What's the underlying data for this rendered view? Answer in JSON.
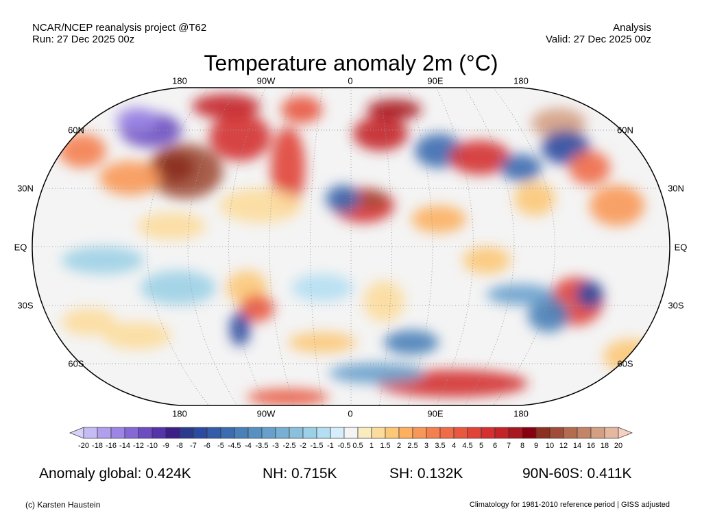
{
  "header": {
    "left_line1": "NCAR/NCEP reanalysis project @T62",
    "left_line2": "Run: 27 Dec 2025 00z",
    "right_line1": "Analysis",
    "right_line2": "Valid: 27 Dec 2025 00z",
    "title": "Temperature anomaly 2m (°C)"
  },
  "map": {
    "projection": "Robinson",
    "lon_labels": [
      "180",
      "90W",
      "0",
      "90E",
      "180"
    ],
    "lat_labels_left": [
      "60N",
      "30N",
      "EQ",
      "30S",
      "60S"
    ],
    "lat_labels_right": [
      "60N",
      "30N",
      "EQ",
      "30S",
      "60S"
    ]
  },
  "colorbar": {
    "labels": [
      "-20",
      "-18",
      "-16",
      "-14",
      "-12",
      "-10",
      "-9",
      "-8",
      "-7",
      "-6",
      "-5",
      "-4.5",
      "-4",
      "-3.5",
      "-3",
      "-2.5",
      "-2",
      "-1.5",
      "-1",
      "-0.5",
      "0.5",
      "1",
      "1.5",
      "2",
      "2.5",
      "3",
      "3.5",
      "4",
      "4.5",
      "5",
      "6",
      "7",
      "8",
      "9",
      "10",
      "12",
      "14",
      "16",
      "18",
      "20"
    ],
    "colors": [
      "#d8d2fa",
      "#c6bcf4",
      "#b19fee",
      "#9c85e4",
      "#8468d6",
      "#6c4cc0",
      "#5434a8",
      "#3c2088",
      "#2c3a8e",
      "#2c4aa0",
      "#345ca8",
      "#3c6cb0",
      "#4880b8",
      "#5890c2",
      "#68a0cc",
      "#78b0d4",
      "#8ac0dc",
      "#9cd0e6",
      "#b4def2",
      "#d6eefc",
      "#f4f4f4",
      "#f8ecc0",
      "#fcdc9c",
      "#fcc878",
      "#fcb060",
      "#f89858",
      "#f48050",
      "#f06c48",
      "#e85840",
      "#e04438",
      "#d43030",
      "#c42428",
      "#a81820",
      "#880010",
      "#8c3020",
      "#a04c38",
      "#b46c50",
      "#c48468",
      "#d4a084",
      "#e4b8a0",
      "#f8d0c0"
    ]
  },
  "stats": {
    "global": "Anomaly global: 0.424K",
    "nh": "NH: 0.715K",
    "sh": "SH: 0.132K",
    "band": "90N-60S: 0.411K"
  },
  "footer": {
    "credit": "(c) Karsten Haustein",
    "note": "Climatology for 1981-2010 reference period | GISS adjusted"
  }
}
